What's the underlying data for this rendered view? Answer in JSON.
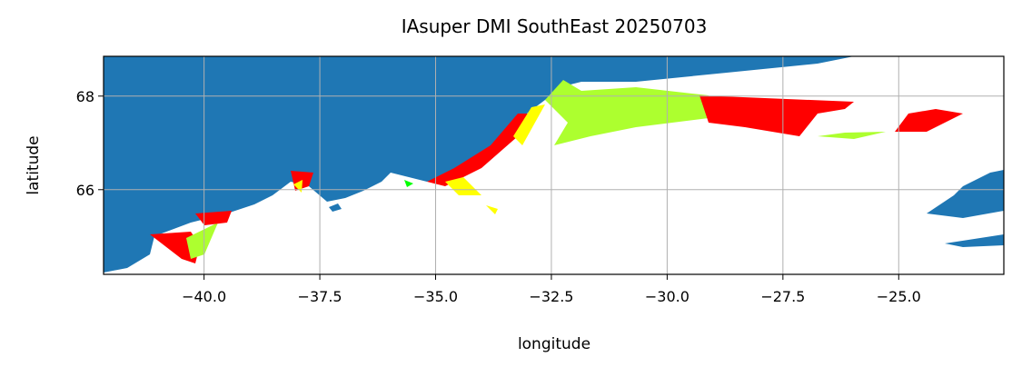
{
  "chart_data": {
    "type": "map",
    "title": "IAsuper DMI SouthEast 20250703",
    "x_label": "longitude",
    "y_label": "latitude",
    "xlim": [
      -42.17,
      -22.73
    ],
    "ylim": [
      64.19,
      68.85
    ],
    "xticks": [
      {
        "value": -40,
        "label": "−40.0"
      },
      {
        "value": -37.5,
        "label": "−37.5"
      },
      {
        "value": -35,
        "label": "−35.0"
      },
      {
        "value": -32.5,
        "label": "−32.5"
      },
      {
        "value": -30,
        "label": "−30.0"
      },
      {
        "value": -27.5,
        "label": "−27.5"
      },
      {
        "value": -25,
        "label": "−25.0"
      }
    ],
    "yticks": [
      66,
      68
    ],
    "grid": true
  }
}
